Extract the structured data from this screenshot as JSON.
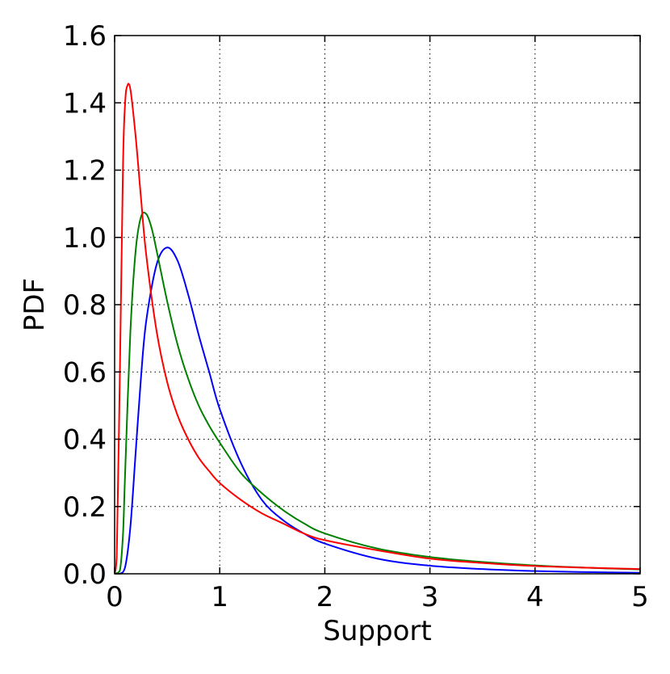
{
  "chart_data": {
    "type": "line",
    "title": "",
    "xlabel": "Support",
    "ylabel": "PDF",
    "xlim": [
      0,
      5
    ],
    "ylim": [
      0,
      1.6
    ],
    "x_ticks": [
      0,
      1,
      2,
      3,
      4,
      5
    ],
    "x_tick_labels": [
      "0",
      "1",
      "2",
      "3",
      "4",
      "5"
    ],
    "y_ticks": [
      0.0,
      0.2,
      0.4,
      0.6,
      0.8,
      1.0,
      1.2,
      1.4,
      1.6
    ],
    "y_tick_labels": [
      "0.0",
      "0.2",
      "0.4",
      "0.6",
      "0.8",
      "1.0",
      "1.2",
      "1.4",
      "1.6"
    ],
    "grid": true,
    "legend": "none",
    "series": [
      {
        "color": "#0000ff",
        "x": [
          0.0,
          0.05,
          0.1,
          0.15,
          0.2,
          0.25,
          0.3,
          0.4,
          0.5,
          0.6,
          0.7,
          0.8,
          0.9,
          1.0,
          1.2,
          1.4,
          1.6,
          1.8,
          2.0,
          2.5,
          3.0,
          3.5,
          4.0,
          4.5,
          5.0
        ],
        "y": [
          0.0,
          0.0,
          0.02,
          0.14,
          0.36,
          0.58,
          0.75,
          0.92,
          0.97,
          0.93,
          0.83,
          0.71,
          0.6,
          0.49,
          0.33,
          0.22,
          0.16,
          0.12,
          0.09,
          0.045,
          0.024,
          0.014,
          0.008,
          0.005,
          0.003
        ]
      },
      {
        "color": "#008000",
        "x": [
          0.0,
          0.05,
          0.08,
          0.1,
          0.15,
          0.2,
          0.25,
          0.3,
          0.35,
          0.4,
          0.5,
          0.6,
          0.7,
          0.8,
          0.9,
          1.0,
          1.2,
          1.4,
          1.6,
          1.8,
          2.0,
          2.5,
          3.0,
          3.5,
          4.0,
          4.5,
          5.0
        ],
        "y": [
          0.0,
          0.01,
          0.12,
          0.3,
          0.72,
          0.96,
          1.06,
          1.07,
          1.03,
          0.96,
          0.81,
          0.68,
          0.58,
          0.5,
          0.44,
          0.39,
          0.3,
          0.24,
          0.19,
          0.15,
          0.12,
          0.075,
          0.05,
          0.035,
          0.025,
          0.018,
          0.013
        ]
      },
      {
        "color": "#ff0000",
        "x": [
          0.0,
          0.02,
          0.05,
          0.08,
          0.1,
          0.12,
          0.15,
          0.2,
          0.25,
          0.3,
          0.4,
          0.5,
          0.6,
          0.7,
          0.8,
          0.9,
          1.0,
          1.2,
          1.4,
          1.6,
          1.8,
          2.0,
          2.5,
          3.0,
          3.5,
          4.0,
          4.5,
          5.0
        ],
        "y": [
          0.0,
          0.05,
          0.6,
          1.22,
          1.4,
          1.45,
          1.44,
          1.3,
          1.12,
          0.95,
          0.72,
          0.57,
          0.47,
          0.4,
          0.345,
          0.305,
          0.27,
          0.22,
          0.18,
          0.15,
          0.12,
          0.1,
          0.07,
          0.045,
          0.032,
          0.023,
          0.018,
          0.014
        ]
      }
    ]
  }
}
